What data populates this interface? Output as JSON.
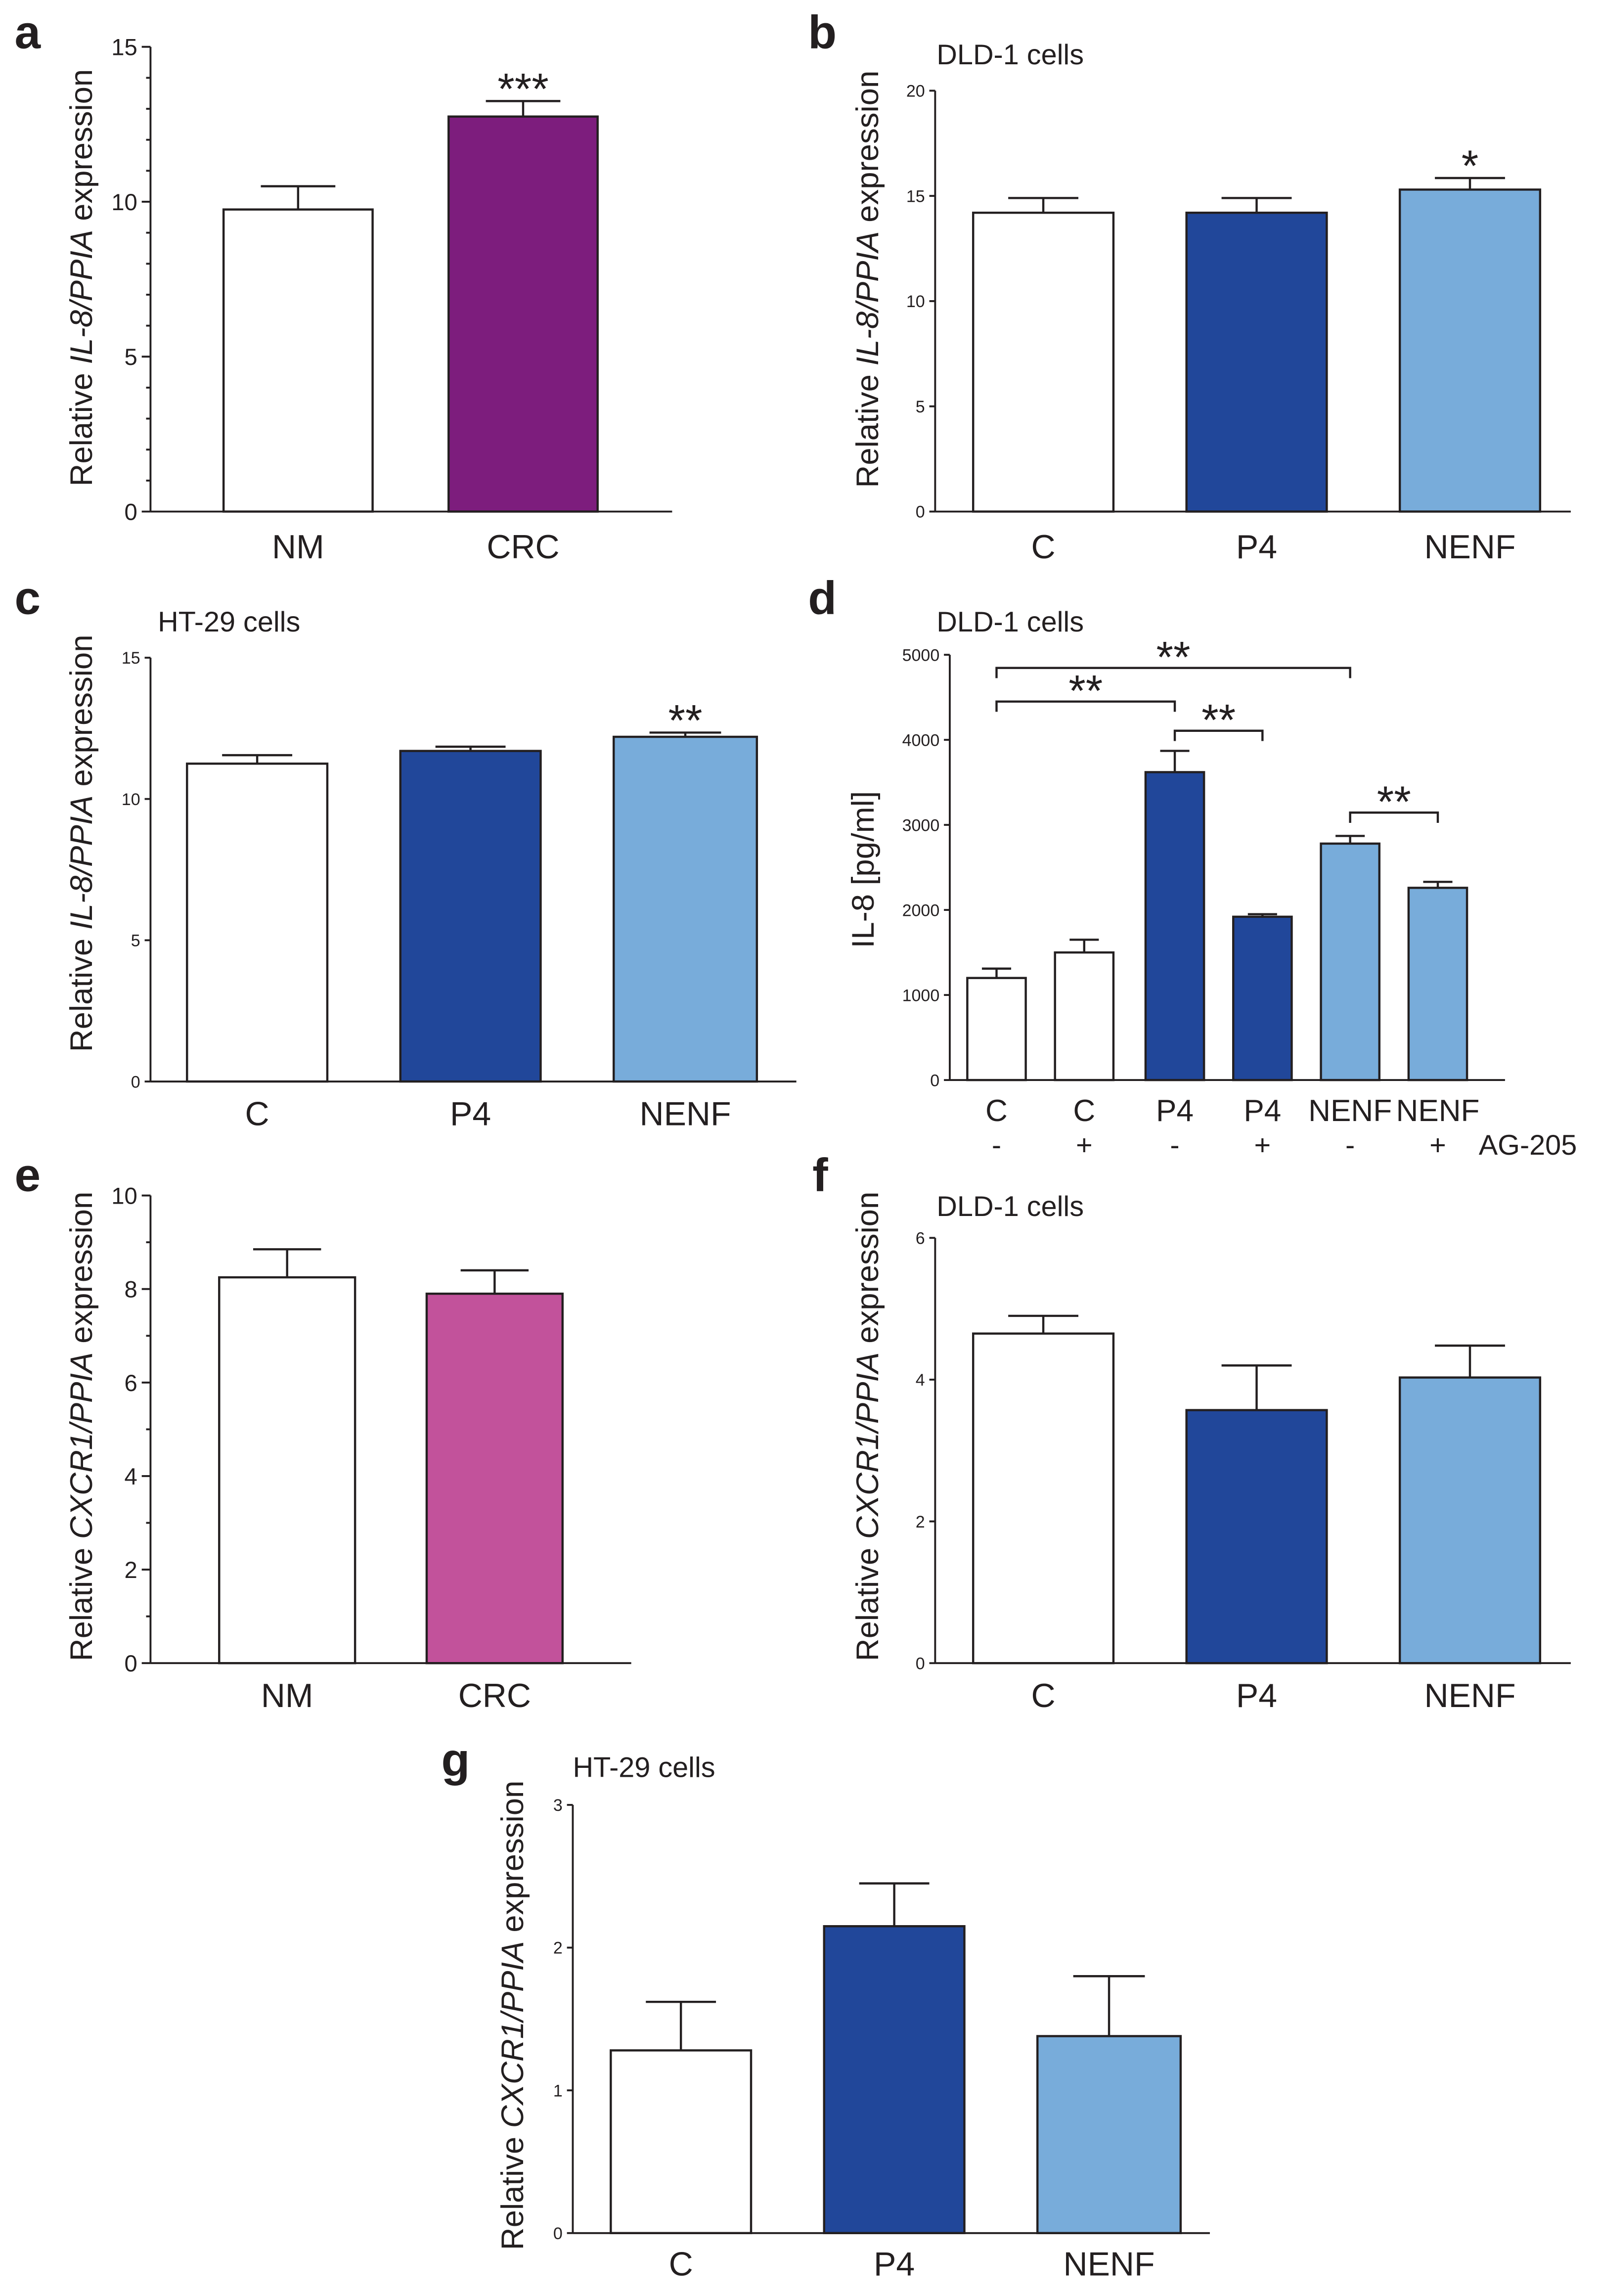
{
  "chart_data": [
    {
      "panel": "a",
      "type": "bar",
      "categories": [
        "NM",
        "CRC"
      ],
      "values": [
        9.75,
        12.75
      ],
      "errors": [
        0.75,
        0.5
      ],
      "colors": [
        "#FFFFFF",
        "#7D1D7D"
      ],
      "ylim": [
        0,
        15
      ],
      "yticks": [
        15,
        10,
        5,
        0
      ],
      "ylabel": {
        "pre": "Relative ",
        "gene": "IL-8/PPIA",
        "post": " expression"
      },
      "significance": [
        {
          "bar": 1,
          "label": "***"
        }
      ]
    },
    {
      "panel": "b",
      "type": "bar",
      "title": "DLD-1 cells",
      "categories": [
        "C",
        "P4",
        "NENF"
      ],
      "values": [
        14.2,
        14.2,
        15.3
      ],
      "errors": [
        0.7,
        0.7,
        0.55
      ],
      "colors": [
        "#FFFFFF",
        "#21479A",
        "#78ACDA"
      ],
      "ylim": [
        0,
        20
      ],
      "yticks": [
        20,
        15,
        10,
        5,
        0
      ],
      "ylabel": {
        "pre": "Relative ",
        "gene": "IL-8/PPIA",
        "post": " expression"
      },
      "significance": [
        {
          "bar": 2,
          "label": "*"
        }
      ]
    },
    {
      "panel": "c",
      "type": "bar",
      "title": "HT-29 cells",
      "categories": [
        "C",
        "P4",
        "NENF"
      ],
      "values": [
        11.25,
        11.7,
        12.2
      ],
      "errors": [
        0.3,
        0.15,
        0.15
      ],
      "colors": [
        "#FFFFFF",
        "#21479A",
        "#78ACDA"
      ],
      "ylim": [
        0,
        15
      ],
      "yticks": [
        15,
        10,
        5,
        0
      ],
      "ylabel": {
        "pre": "Relative ",
        "gene": "IL-8/PPIA",
        "post": " expression"
      },
      "significance": [
        {
          "bar": 2,
          "label": "**"
        }
      ]
    },
    {
      "panel": "d",
      "type": "bar",
      "title": "DLD-1 cells",
      "categories": [
        "C",
        "C",
        "P4",
        "P4",
        "NENF",
        "NENF"
      ],
      "treatment": {
        "label": "AG-205",
        "values": [
          "-",
          "+",
          "-",
          "+",
          "-",
          "+"
        ]
      },
      "values": [
        1200,
        1500,
        3620,
        1920,
        2780,
        2260
      ],
      "errors": [
        110,
        150,
        250,
        30,
        90,
        70
      ],
      "colors": [
        "#FFFFFF",
        "#FFFFFF",
        "#21479A",
        "#21479A",
        "#78ACDA",
        "#78ACDA"
      ],
      "ylim": [
        0,
        5000
      ],
      "yticks": [
        5000,
        4000,
        3000,
        2000,
        1000,
        0
      ],
      "ylabel": {
        "pre": "IL-8 [pg/ml]"
      },
      "comparisons": [
        {
          "from": 0,
          "to": 4,
          "label": "**"
        },
        {
          "from": 0,
          "to": 2,
          "label": "**"
        },
        {
          "from": 2,
          "to": 3,
          "label": "**"
        },
        {
          "from": 4,
          "to": 5,
          "label": "**"
        }
      ]
    },
    {
      "panel": "e",
      "type": "bar",
      "categories": [
        "NM",
        "CRC"
      ],
      "values": [
        8.25,
        7.9
      ],
      "errors": [
        0.6,
        0.5
      ],
      "colors": [
        "#FFFFFF",
        "#C2529B"
      ],
      "ylim": [
        0,
        10
      ],
      "yticks": [
        10,
        8,
        6,
        4,
        2,
        0
      ],
      "ylabel": {
        "pre": "Relative ",
        "gene": "CXCR1/PPIA",
        "post": " expression"
      }
    },
    {
      "panel": "f",
      "type": "bar",
      "title": "DLD-1 cells",
      "categories": [
        "C",
        "P4",
        "NENF"
      ],
      "values": [
        4.65,
        3.57,
        4.03
      ],
      "errors": [
        0.25,
        0.63,
        0.45
      ],
      "colors": [
        "#FFFFFF",
        "#21479A",
        "#78ACDA"
      ],
      "ylim": [
        0,
        6
      ],
      "yticks": [
        6,
        4,
        2,
        0
      ],
      "ylabel": {
        "pre": "Relative ",
        "gene": "CXCR1/PPIA",
        "post": " expression"
      }
    },
    {
      "panel": "g",
      "type": "bar",
      "title": "HT-29 cells",
      "categories": [
        "C",
        "P4",
        "NENF"
      ],
      "values": [
        1.28,
        2.15,
        1.38
      ],
      "errors": [
        0.34,
        0.3,
        0.42
      ],
      "colors": [
        "#FFFFFF",
        "#21479A",
        "#78ACDA"
      ],
      "ylim": [
        0,
        3
      ],
      "yticks": [
        3,
        2,
        1,
        0
      ],
      "ylabel": {
        "pre": "Relative ",
        "gene": "CXCR1/PPIA",
        "post": " expression"
      }
    }
  ]
}
